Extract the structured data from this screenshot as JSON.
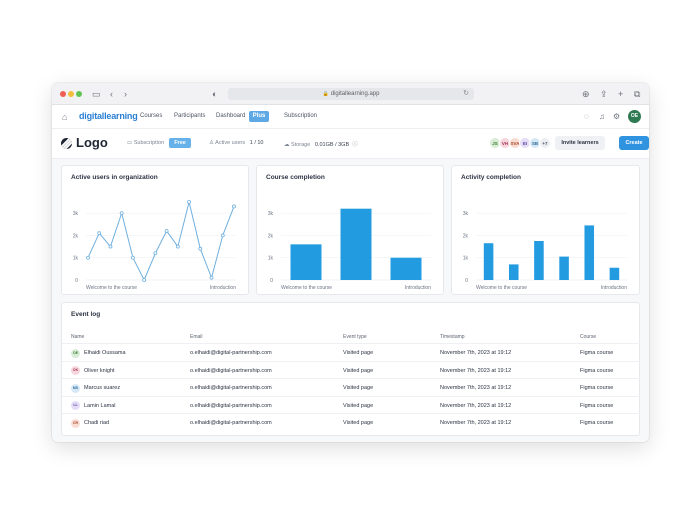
{
  "browser": {
    "url": "digitallearning.app"
  },
  "nav": {
    "brand": "digitallearning",
    "links": [
      "Courses",
      "Participants",
      "Dashboard"
    ],
    "plus": "Plus",
    "subscription": "Subscription",
    "user_initials": "OE"
  },
  "header": {
    "logo": "Logo",
    "subscription_label": "Subscription",
    "subscription_value": "Free",
    "active_users_label": "Active users",
    "active_users_value": "1 / 10",
    "storage_label": "Storage",
    "storage_value": "0.01GB / 3GB",
    "avatars": [
      {
        "initials": "JS",
        "bg": "#d8ecd6",
        "fg": "#3c7a35"
      },
      {
        "initials": "VH",
        "bg": "#f6d5dc",
        "fg": "#a23a55"
      },
      {
        "initials": "SVA",
        "bg": "#f8dcd2",
        "fg": "#a8472b"
      },
      {
        "initials": "EI",
        "bg": "#e4ddf5",
        "fg": "#5a43a6"
      },
      {
        "initials": "SB",
        "bg": "#d6e8f6",
        "fg": "#2d6c9c"
      },
      {
        "initials": "+7",
        "bg": "#eceef2",
        "fg": "#4b5262"
      }
    ],
    "invite_label": "Invite learners",
    "create_label": "Create"
  },
  "colors": {
    "accent": "#2f93e0",
    "chart": "#239be0",
    "line": "#6fb0de"
  },
  "chart_data": [
    {
      "type": "line",
      "title": "Active users in organization",
      "x_start_label": "Welcome to the course",
      "x_end_label": "Introduction",
      "yticks": [
        "3k",
        "2k",
        "1k",
        "0"
      ],
      "ylim": [
        0,
        3500
      ],
      "values": [
        1000,
        2100,
        1500,
        3000,
        1000,
        0,
        1200,
        2200,
        1500,
        3500,
        1400,
        100,
        2000,
        3300
      ]
    },
    {
      "type": "bar",
      "title": "Course completion",
      "x_start_label": "Welcome to the course",
      "x_end_label": "Introduction",
      "yticks": [
        "3k",
        "2k",
        "1k",
        "0"
      ],
      "ylim": [
        0,
        3500
      ],
      "values": [
        1600,
        3200,
        1000
      ]
    },
    {
      "type": "bar",
      "title": "Activity completion",
      "x_start_label": "Welcome to the course",
      "x_end_label": "Introduction",
      "yticks": [
        "3k",
        "2k",
        "1k",
        "0"
      ],
      "ylim": [
        0,
        3500
      ],
      "values": [
        1650,
        700,
        1750,
        1050,
        2450,
        550
      ]
    }
  ],
  "event_log": {
    "title": "Event log",
    "columns": [
      "Name",
      "Email",
      "Event type",
      "Timestamp",
      "Course"
    ],
    "rows": [
      {
        "initials": "OE",
        "bg": "#d8ecd6",
        "fg": "#3c7a35",
        "name": "Elhaidi Oussama",
        "email": "o.elhaidi@digital-partnership.com",
        "event": "Visited page",
        "timestamp": "November 7th, 2023 at 19:12",
        "course": "Figma course"
      },
      {
        "initials": "OK",
        "bg": "#f6d5dc",
        "fg": "#a23a55",
        "name": "Oliver knight",
        "email": "o.elhaidi@digital-partnership.com",
        "event": "Visited page",
        "timestamp": "November 7th, 2023 at 19:12",
        "course": "Figma course"
      },
      {
        "initials": "MS",
        "bg": "#d6e8f6",
        "fg": "#2d6c9c",
        "name": "Marcus suarez",
        "email": "o.elhaidi@digital-partnership.com",
        "event": "Visited page",
        "timestamp": "November 7th, 2023 at 19:12",
        "course": "Figma course"
      },
      {
        "initials": "LL",
        "bg": "#e4ddf5",
        "fg": "#5a43a6",
        "name": "Lamin Lamal",
        "email": "o.elhaidi@digital-partnership.com",
        "event": "Visited page",
        "timestamp": "November 7th, 2023 at 19:12",
        "course": "Figma course"
      },
      {
        "initials": "CR",
        "bg": "#f8dcd2",
        "fg": "#a8472b",
        "name": "Chadi riad",
        "email": "o.elhaidi@digital-partnership.com",
        "event": "Visited page",
        "timestamp": "November 7th, 2023 at 19:12",
        "course": "Figma course"
      }
    ]
  }
}
